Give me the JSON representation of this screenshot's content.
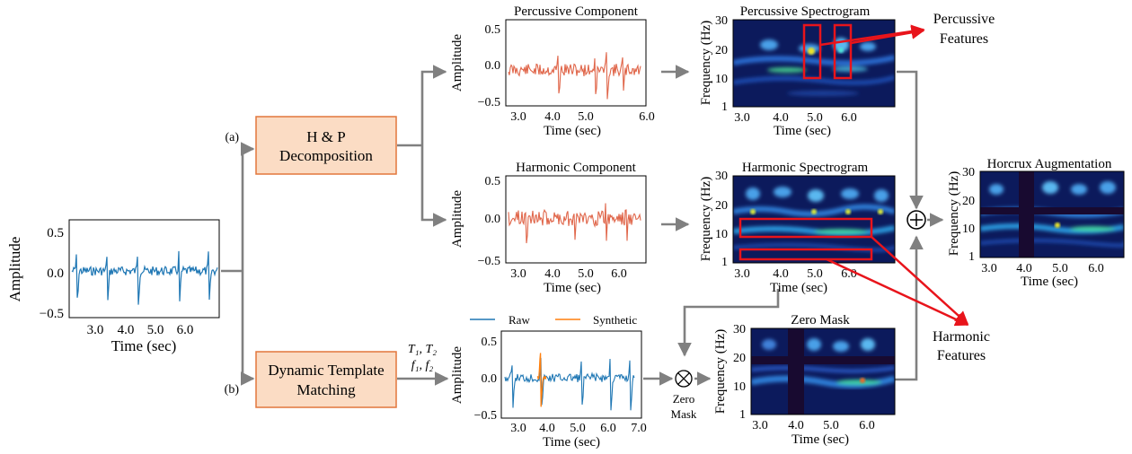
{
  "colors": {
    "raw_signal": "#1f77b4",
    "synthetic_signal": "#ff7f0e",
    "component_signal": "#e0664a",
    "process_box_fill": "#fbdcc4",
    "process_box_stroke": "#e2773c",
    "flow_arrow": "#808080",
    "annotation": "#e8141b",
    "spectro_bg": "#0c1a5c"
  },
  "labels": {
    "branch_a": "(a)",
    "branch_b": "(b)",
    "hp_box_line1": "H & P",
    "hp_box_line2": "Decomposition",
    "dtm_box_line1": "Dynamic Template",
    "dtm_box_line2": "Matching",
    "template_params_line1": "T₁, T₂",
    "template_params_line2": "f₁, f₂",
    "zero_mask_op_line1": "Zero",
    "zero_mask_op_line2": "Mask",
    "percussive_features_line1": "Percussive",
    "percussive_features_line2": "Features",
    "harmonic_features_line1": "Harmonic",
    "harmonic_features_line2": "Features",
    "legend_raw": "Raw",
    "legend_synthetic": "Synthetic"
  },
  "plots": {
    "input": {
      "ylabel": "Amplitude",
      "xlabel": "Time (sec)",
      "yticks": [
        "0.5",
        "0.0",
        "−0.5"
      ],
      "xticks": [
        "3.0",
        "4.0",
        "5.0",
        "6.0"
      ]
    },
    "percussive_component": {
      "title": "Percussive Component",
      "ylabel": "Amplitude",
      "xlabel": "Time (sec)",
      "yticks": [
        "0.5",
        "0.0",
        "−0.5"
      ],
      "xticks": [
        "3.0",
        "4.0",
        "5.0",
        "6.0"
      ]
    },
    "harmonic_component": {
      "title": "Harmonic Component",
      "ylabel": "Amplitude",
      "xlabel": "Time (sec)",
      "yticks": [
        "0.5",
        "0.0",
        "−0.5"
      ],
      "xticks": [
        "3.0",
        "4.0",
        "5.0",
        "6.0"
      ]
    },
    "template_matching": {
      "ylabel": "Amplitude",
      "xlabel": "Time (sec)",
      "yticks": [
        "0.5",
        "0.0",
        "−0.5"
      ],
      "xticks": [
        "3.0",
        "4.0",
        "5.0",
        "6.0",
        "7.0"
      ]
    },
    "percussive_spectrogram": {
      "title": "Percussive Spectrogram",
      "ylabel": "Frequency (Hz)",
      "xlabel": "Time (sec)",
      "yticks": [
        "30",
        "20",
        "10",
        "1"
      ],
      "xticks": [
        "3.0",
        "4.0",
        "5.0",
        "6.0"
      ]
    },
    "harmonic_spectrogram": {
      "title": "Harmonic Spectrogram",
      "ylabel": "Frequency (Hz)",
      "xlabel": "Time (sec)",
      "yticks": [
        "30",
        "20",
        "10",
        "1"
      ],
      "xticks": [
        "3.0",
        "4.0",
        "5.0",
        "6.0"
      ]
    },
    "zero_mask": {
      "title": "Zero Mask",
      "ylabel": "Frequency (Hz)",
      "xlabel": "Time (sec)",
      "yticks": [
        "30",
        "20",
        "10",
        "1"
      ],
      "xticks": [
        "3.0",
        "4.0",
        "5.0",
        "6.0"
      ]
    },
    "horcrux": {
      "title": "Horcrux Augmentation",
      "ylabel": "Frequency (Hz)",
      "xlabel": "Time (sec)",
      "yticks": [
        "30",
        "20",
        "10",
        "1"
      ],
      "xticks": [
        "3.0",
        "4.0",
        "5.0",
        "6.0"
      ]
    }
  }
}
